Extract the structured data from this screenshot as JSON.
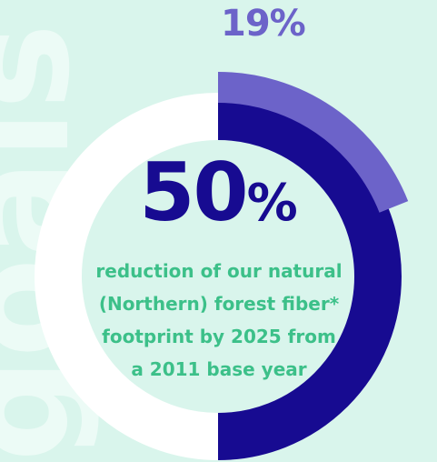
{
  "background_word": "goals",
  "chart_data": {
    "type": "donut",
    "segments": [
      {
        "value": 50,
        "color": "#170b91"
      },
      {
        "value": 19,
        "color": "#6c63c9"
      }
    ],
    "remainder_color": "#ffffff",
    "background_color": "#d9f5ec",
    "max": 100
  },
  "top_label": "19%",
  "center": {
    "value": "50",
    "unit": "%",
    "caption_lines": [
      "reduction of our natural",
      "(Northern) forest fiber*",
      "footprint by 2025 from",
      "a 2011 base year"
    ]
  }
}
